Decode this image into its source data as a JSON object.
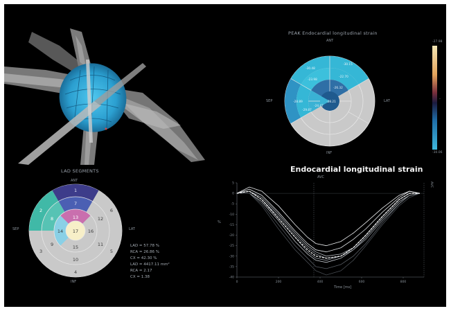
{
  "panels": {
    "render3d": {},
    "lad_segments": {
      "title": "LAD SEGMENTS",
      "label_top": "ANT",
      "label_bottom": "INF",
      "label_left": "SEP",
      "label_right": "LAT",
      "segments": {
        "s1": "1",
        "s2": "2",
        "s3": "3",
        "s4": "4",
        "s5": "5",
        "s6": "6",
        "s7": "7",
        "s8": "8",
        "s9": "9",
        "s10": "10",
        "s11": "11",
        "s12": "12",
        "s13": "13",
        "s14": "14",
        "s15": "15",
        "s16": "16",
        "s17": "17"
      },
      "stats": [
        "LAD = 57.78 %",
        "RCA = 26.86 %",
        "CX = 42.30 %",
        "LAD = 4417.11 mm²",
        "RCA = 2.17",
        "CX = 1.38"
      ]
    },
    "bullseye": {
      "title": "PEAK Endocardial longitudinal strain",
      "label_top": "ANT",
      "label_bottom": "INF",
      "label_left": "SEP",
      "label_right": "LAT",
      "values": {
        "v1": "-30.15",
        "v2": "-30.48",
        "v3": "-28.89",
        "v4": "-22.70",
        "v5": "-23.98",
        "v6": "-29.87",
        "v7": "-26.32",
        "v8": "-28.21",
        "v9": "-24.47"
      },
      "colorbar": {
        "max": "-27.98",
        "min": "-30.06",
        "mid": "-"
      }
    },
    "strain_plot": {
      "title": "Endocardial longitudinal strain",
      "xlabel": "Time [ms]",
      "ylabel": "%",
      "right_label": "AVC",
      "annot_top": "AVC",
      "chart_data": {
        "type": "line",
        "xlim": [
          0,
          900
        ],
        "ylim": [
          -40,
          5
        ],
        "x_ticks": [
          "0",
          "200",
          "400",
          "600",
          "800"
        ],
        "y_ticks": [
          "5",
          "0",
          "-5",
          "-10",
          "-15",
          "-20",
          "-25",
          "-30",
          "-35",
          "-40"
        ],
        "vertical_marker_x": 370,
        "series": [
          {
            "x": [
              0,
              60,
              120,
              200,
              280,
              340,
              380,
              430,
              500,
              560,
              620,
              700,
              780,
              830,
              880
            ],
            "y": [
              0,
              0,
              -5,
              -15,
              -25,
              -31,
              -35,
              -36,
              -34,
              -30,
              -24,
              -14,
              -5,
              -1,
              0
            ]
          },
          {
            "x": [
              0,
              60,
              120,
              200,
              280,
              340,
              380,
              430,
              500,
              560,
              620,
              700,
              780,
              830,
              880
            ],
            "y": [
              0,
              1,
              -3,
              -12,
              -21,
              -28,
              -31,
              -32,
              -30,
              -26,
              -20,
              -11,
              -3,
              0,
              0
            ]
          },
          {
            "x": [
              0,
              60,
              120,
              200,
              280,
              340,
              380,
              430,
              500,
              560,
              620,
              700,
              780,
              830,
              880
            ],
            "y": [
              0,
              0,
              -4,
              -13,
              -23,
              -29,
              -32,
              -33,
              -31,
              -27,
              -21,
              -12,
              -4,
              -1,
              0
            ]
          },
          {
            "x": [
              0,
              60,
              120,
              200,
              280,
              340,
              380,
              430,
              500,
              560,
              620,
              700,
              780,
              830,
              880
            ],
            "y": [
              0,
              2,
              -1,
              -9,
              -18,
              -24,
              -27,
              -28,
              -26,
              -22,
              -17,
              -9,
              -2,
              1,
              0
            ]
          },
          {
            "x": [
              0,
              60,
              120,
              200,
              280,
              340,
              380,
              430,
              500,
              560,
              620,
              700,
              780,
              830,
              880
            ],
            "y": [
              0,
              1,
              -2,
              -10,
              -19,
              -25,
              -28,
              -30,
              -29,
              -26,
              -20,
              -11,
              -3,
              0,
              0
            ]
          },
          {
            "x": [
              0,
              60,
              120,
              200,
              280,
              340,
              380,
              430,
              500,
              560,
              620,
              700,
              780,
              830,
              880
            ],
            "y": [
              0,
              0,
              -6,
              -17,
              -27,
              -33,
              -37,
              -39,
              -37,
              -32,
              -25,
              -15,
              -6,
              -2,
              0
            ]
          },
          {
            "x": [
              0,
              60,
              120,
              200,
              280,
              340,
              380,
              430,
              500,
              560,
              620,
              700,
              780,
              830,
              880
            ],
            "y": [
              0,
              3,
              1,
              -6,
              -15,
              -21,
              -24,
              -25,
              -23,
              -19,
              -14,
              -7,
              -1,
              1,
              0
            ]
          },
          {
            "x": [
              0,
              60,
              120,
              200,
              280,
              340,
              380,
              430,
              500,
              560,
              620,
              700,
              780,
              830,
              880
            ],
            "y": [
              0,
              1,
              -3,
              -11,
              -20,
              -26,
              -29,
              -31,
              -30,
              -27,
              -22,
              -13,
              -5,
              -1,
              0
            ]
          }
        ],
        "mean_series": {
          "x": [
            0,
            60,
            120,
            200,
            280,
            340,
            380,
            430,
            500,
            560,
            620,
            700,
            780,
            830,
            880
          ],
          "y": [
            0,
            1,
            -3,
            -12,
            -21,
            -27,
            -30,
            -31,
            -30,
            -26,
            -20,
            -11,
            -3,
            0,
            0
          ]
        }
      }
    }
  },
  "colors": {
    "background": "#000000",
    "segment_cyan": "#35b7d6",
    "segment_blue": "#2f6fa6",
    "segment_gray": "#c9c9c9",
    "segment_navy": "#3d3c8a",
    "segment_teal": "#40b9a7",
    "segment_pink": "#c96fae",
    "segment_cream": "#f7efc8"
  }
}
